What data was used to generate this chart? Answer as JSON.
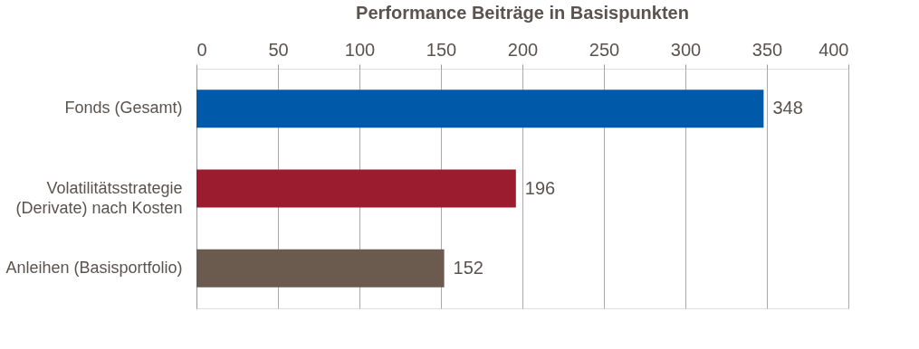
{
  "chart_data": {
    "type": "bar",
    "orientation": "horizontal",
    "title": "Performance Beiträge in Basispunkten",
    "categories": [
      "Fonds (Gesamt)",
      "Volatilitätsstrategie\n(Derivate) nach Kosten",
      "Anleihen (Basisportfolio)"
    ],
    "values": [
      348,
      196,
      152
    ],
    "colors": [
      "#005aa9",
      "#9b1c2e",
      "#6b5a4e"
    ],
    "xlim": [
      0,
      400
    ],
    "xticks": [
      0,
      50,
      100,
      150,
      200,
      250,
      300,
      350,
      400
    ],
    "grid": "x",
    "data_labels": true
  }
}
